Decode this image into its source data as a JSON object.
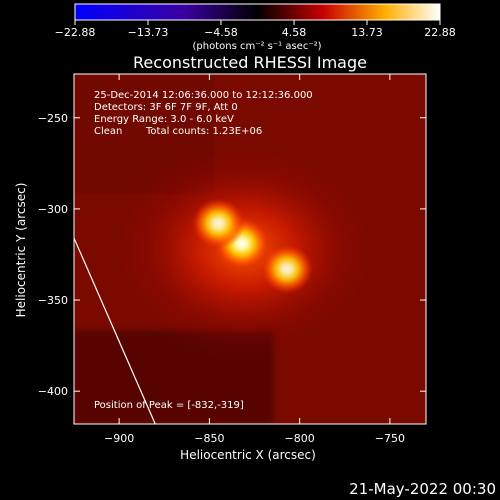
{
  "chart_data": {
    "type": "heatmap",
    "title": "Reconstructed RHESSI Image",
    "xlabel": "Heliocentric X (arcsec)",
    "ylabel": "Heliocentric Y (arcsec)",
    "xlim": [
      -925,
      -730
    ],
    "ylim": [
      -418,
      -226
    ],
    "x_ticks": [
      -900,
      -850,
      -800,
      -750
    ],
    "x_tick_labels": [
      "−900",
      "−850",
      "−800",
      "−750"
    ],
    "y_ticks": [
      -250,
      -300,
      -350,
      -400
    ],
    "y_tick_labels": [
      "−250",
      "−300",
      "−350",
      "−400"
    ],
    "colorbar": {
      "range": [
        -22.88,
        22.88
      ],
      "tick_values": [
        -22.88,
        -13.73,
        -4.58,
        4.58,
        13.73,
        22.88
      ],
      "tick_labels": [
        "−22.88",
        "−13.73",
        "−4.58",
        "4.58",
        "13.73",
        "22.88"
      ],
      "unit_label": "(photons cm⁻² s⁻¹ asec⁻²)",
      "colormap": [
        "#0000ff",
        "#000000",
        "#ff0000",
        "#ffff00",
        "#ffffff"
      ]
    },
    "sources": [
      {
        "x": -832,
        "y": -319,
        "relative_peak": 1.0
      },
      {
        "x": -845,
        "y": -308,
        "relative_peak": 0.85
      },
      {
        "x": -807,
        "y": -333,
        "relative_peak": 0.8
      }
    ],
    "limb_line": [
      [
        -925,
        -316
      ],
      [
        -880,
        -418
      ]
    ],
    "annotations": {
      "time_range": "25-Dec-2014 12:06:36.000 to 12:12:36.000",
      "detectors": "Detectors: 3F 6F 7F 9F, Att 0",
      "energy_range": "Energy Range: 3.0 - 6.0 keV",
      "clean": "Clean",
      "total_counts": "Total counts: 1.23E+06",
      "peak_position": "Position of Peak = [-832,-319]"
    }
  },
  "footer": {
    "timestamp": "21-May-2022 00:30"
  }
}
